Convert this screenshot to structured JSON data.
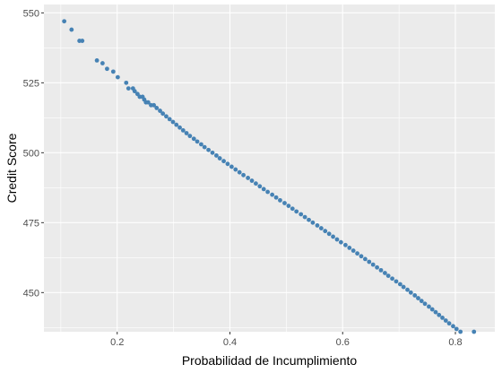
{
  "chart_data": {
    "type": "scatter",
    "xlabel": "Probabilidad de Incumplimiento",
    "ylabel": "Credit Score",
    "xlim": [
      0.07,
      0.87
    ],
    "ylim": [
      436,
      553
    ],
    "x_ticks": [
      0.2,
      0.4,
      0.6,
      0.8
    ],
    "x_tick_labels": [
      "0.2",
      "0.4",
      "0.6",
      "0.8"
    ],
    "y_ticks": [
      450,
      475,
      500,
      525,
      550
    ],
    "y_tick_labels": [
      "450",
      "475",
      "500",
      "525",
      "550"
    ],
    "grid": true,
    "legend": "none",
    "point_color": "#4682b4",
    "panel_color": "#ebebeb",
    "series": [
      {
        "x": [
          0.106,
          0.119,
          0.133,
          0.138,
          0.164,
          0.174,
          0.182,
          0.193,
          0.201,
          0.216,
          0.22,
          0.228,
          0.231,
          0.236,
          0.24,
          0.245,
          0.248,
          0.251,
          0.255,
          0.26,
          0.265,
          0.27,
          0.276,
          0.281,
          0.287,
          0.293,
          0.299,
          0.305,
          0.311,
          0.317,
          0.323,
          0.329,
          0.336,
          0.342,
          0.349,
          0.355,
          0.362,
          0.369,
          0.376,
          0.382,
          0.389,
          0.396,
          0.403,
          0.41,
          0.417,
          0.424,
          0.432,
          0.439,
          0.446,
          0.453,
          0.46,
          0.467,
          0.475,
          0.482,
          0.489,
          0.497,
          0.504,
          0.511,
          0.518,
          0.526,
          0.533,
          0.54,
          0.547,
          0.555,
          0.562,
          0.569,
          0.576,
          0.583,
          0.59,
          0.597,
          0.605,
          0.612,
          0.619,
          0.626,
          0.633,
          0.64,
          0.647,
          0.654,
          0.661,
          0.668,
          0.675,
          0.681,
          0.688,
          0.695,
          0.702,
          0.708,
          0.715,
          0.721,
          0.728,
          0.734,
          0.74,
          0.746,
          0.753,
          0.759,
          0.765,
          0.771,
          0.777,
          0.783,
          0.789,
          0.796,
          0.802,
          0.809,
          0.833
        ],
        "y": [
          547,
          544,
          540,
          540,
          533,
          532,
          530,
          529,
          527,
          525,
          523,
          523,
          522,
          521,
          520,
          520,
          519,
          518,
          518,
          517,
          517,
          516,
          515,
          514,
          513,
          512,
          511,
          510,
          509,
          508,
          507,
          506,
          505,
          504,
          503,
          502,
          501,
          500,
          499,
          498,
          497,
          496,
          495,
          494,
          493,
          492,
          491,
          490,
          489,
          488,
          487,
          486,
          485,
          484,
          483,
          482,
          481,
          480,
          479,
          478,
          477,
          476,
          475,
          474,
          473,
          472,
          471,
          470,
          469,
          468,
          467,
          466,
          465,
          464,
          463,
          462,
          461,
          460,
          459,
          458,
          457,
          456,
          455,
          454,
          453,
          452,
          451,
          450,
          449,
          448,
          447,
          446,
          445,
          444,
          443,
          442,
          441,
          440,
          439,
          438,
          437,
          436,
          436
        ]
      }
    ]
  }
}
